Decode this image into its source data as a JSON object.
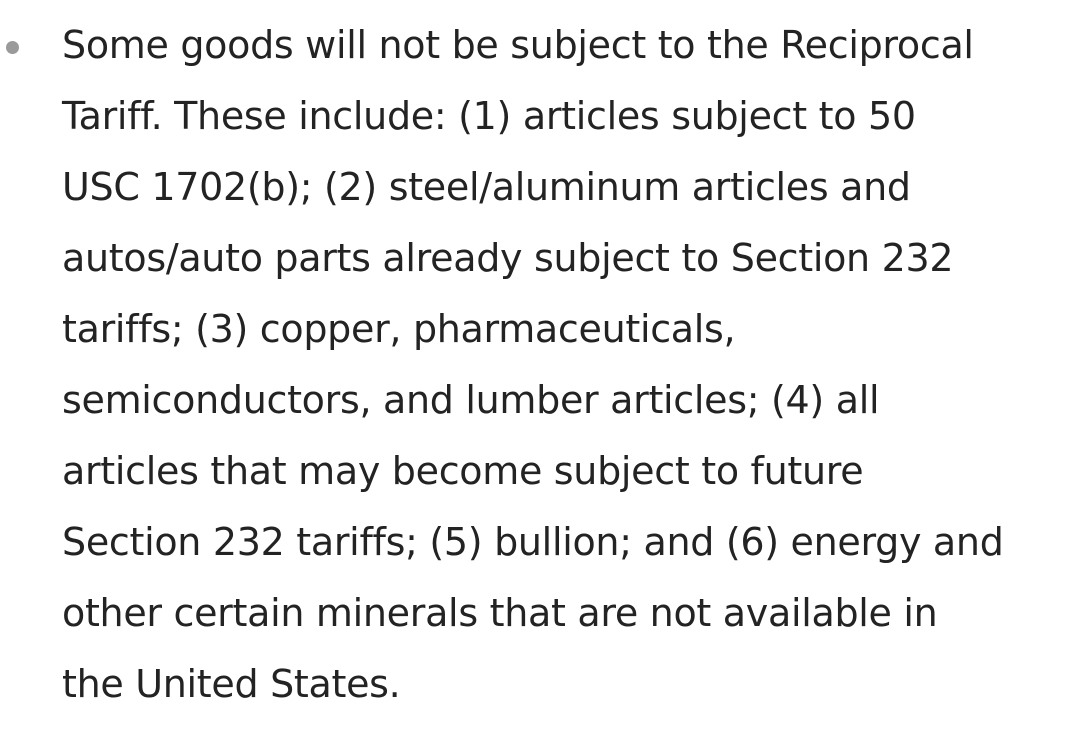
{
  "bullet": {
    "lines": [
      "Some goods will not be subject to the Reciprocal",
      "Tariff. These include: (1) articles subject to 50",
      "USC 1702(b); (2) steel/aluminum articles and",
      "autos/auto parts already subject to Section 232",
      "tariffs; (3) copper, pharmaceuticals,",
      "semiconductors, and lumber articles; (4) all",
      "articles that may become subject to future",
      "Section 232 tariffs; (5) bullion; and (6) energy and",
      "other certain minerals that are not available in",
      "the United States."
    ]
  }
}
